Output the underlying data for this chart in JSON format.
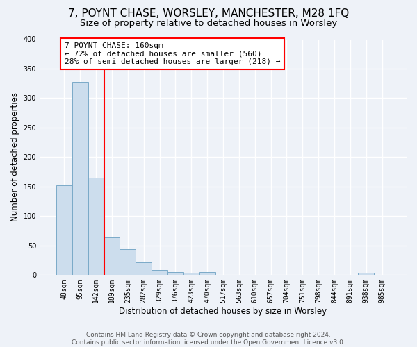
{
  "title1": "7, POYNT CHASE, WORSLEY, MANCHESTER, M28 1FQ",
  "title2": "Size of property relative to detached houses in Worsley",
  "xlabel": "Distribution of detached houses by size in Worsley",
  "ylabel": "Number of detached properties",
  "categories": [
    "48sqm",
    "95sqm",
    "142sqm",
    "189sqm",
    "235sqm",
    "282sqm",
    "329sqm",
    "376sqm",
    "423sqm",
    "470sqm",
    "517sqm",
    "563sqm",
    "610sqm",
    "657sqm",
    "704sqm",
    "751sqm",
    "798sqm",
    "844sqm",
    "891sqm",
    "938sqm",
    "985sqm"
  ],
  "values": [
    152,
    328,
    165,
    64,
    44,
    21,
    9,
    5,
    4,
    5,
    0,
    0,
    0,
    0,
    0,
    0,
    0,
    0,
    0,
    4,
    0
  ],
  "bar_color": "#ccdded",
  "bar_edge_color": "#7aaac8",
  "red_line_x": 2.5,
  "annotation_line1": "7 POYNT CHASE: 160sqm",
  "annotation_line2": "← 72% of detached houses are smaller (560)",
  "annotation_line3": "28% of semi-detached houses are larger (218) →",
  "annotation_box_color": "white",
  "annotation_box_edge_color": "red",
  "red_line_color": "red",
  "ylim": [
    0,
    400
  ],
  "yticks": [
    0,
    50,
    100,
    150,
    200,
    250,
    300,
    350,
    400
  ],
  "footer_text": "Contains HM Land Registry data © Crown copyright and database right 2024.\nContains public sector information licensed under the Open Government Licence v3.0.",
  "background_color": "#eef2f8",
  "grid_color": "#ffffff",
  "title1_fontsize": 11,
  "title2_fontsize": 9.5,
  "xlabel_fontsize": 8.5,
  "ylabel_fontsize": 8.5,
  "tick_fontsize": 7,
  "footer_fontsize": 6.5,
  "annotation_fontsize": 8
}
